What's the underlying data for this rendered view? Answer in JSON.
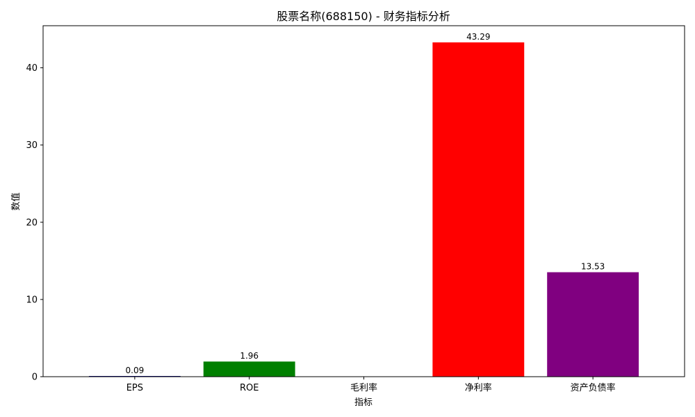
{
  "chart_data": {
    "type": "bar",
    "title": "股票名称(688150) - 财务指标分析",
    "xlabel": "指标",
    "ylabel": "数值",
    "categories": [
      "EPS",
      "ROE",
      "毛利率",
      "净利率",
      "资产负债率"
    ],
    "values": [
      0.09,
      1.96,
      0,
      43.29,
      13.53
    ],
    "value_labels": [
      "0.09",
      "1.96",
      "",
      "43.29",
      "13.53"
    ],
    "colors": [
      "#000080",
      "#008000",
      "#FFA500",
      "#FF0000",
      "#800080"
    ],
    "ylim": [
      0,
      45.45
    ],
    "yticks": [
      0,
      10,
      20,
      30,
      40
    ],
    "grid": false
  }
}
